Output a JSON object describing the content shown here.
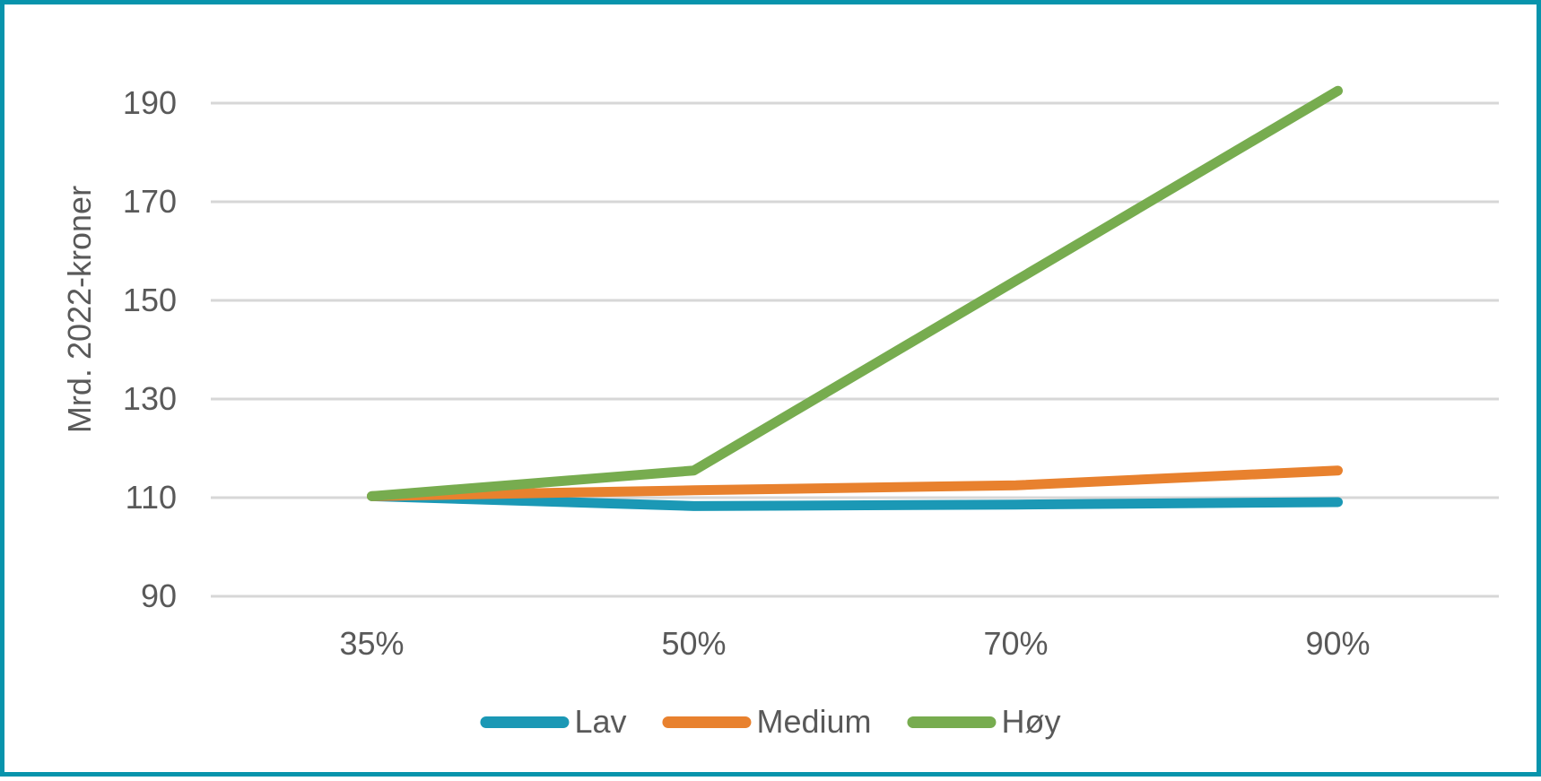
{
  "chart_data": {
    "type": "line",
    "categories": [
      "35%",
      "50%",
      "70%",
      "90%"
    ],
    "series": [
      {
        "name": "Lav",
        "color": "#1B98B5",
        "values": [
          110.3,
          108.3,
          108.6,
          109.1
        ]
      },
      {
        "name": "Medium",
        "color": "#E8812E",
        "values": [
          110.3,
          111.5,
          112.5,
          115.5
        ]
      },
      {
        "name": "Høy",
        "color": "#77AC4F",
        "values": [
          110.3,
          115.5,
          154,
          192.5
        ]
      }
    ],
    "ylabel": "Mrd. 2022-kroner",
    "yticks": [
      90,
      110,
      130,
      150,
      170,
      190
    ],
    "ylim": [
      90,
      196
    ],
    "grid": true,
    "legend_position": "bottom"
  },
  "colors": {
    "frame_border": "#0894AC",
    "gridline": "#D7D7D7",
    "text": "#595959"
  }
}
